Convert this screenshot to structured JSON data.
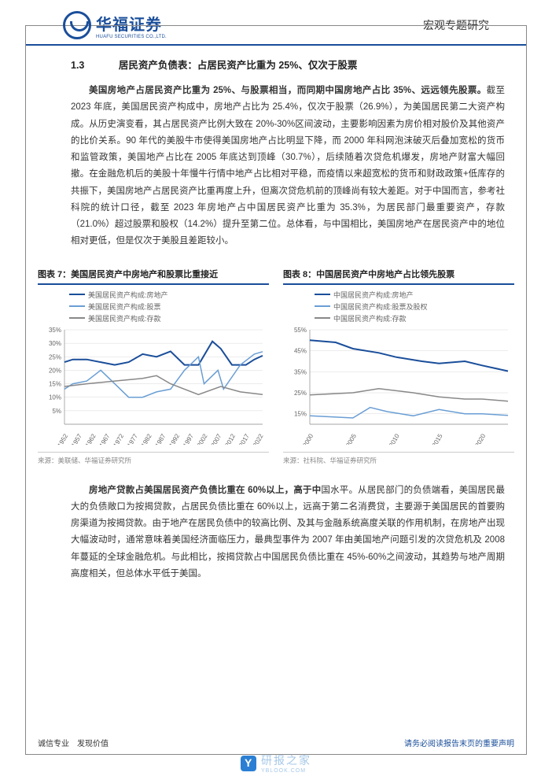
{
  "header": {
    "logo_cn": "华福证券",
    "logo_en": "HUAFU SECURITIES CO.,LTD.",
    "right_text": "宏观专题研究"
  },
  "section": {
    "number": "1.3",
    "title": "居民资产负债表：占居民资产比重为 25%、仅次于股票"
  },
  "para1": "美国房地产占居民资产比重为 25%、与股票相当，而同期中国房地产占比 35%、远远领先股票。截至 2023 年底，美国居民资产构成中，房地产占比为 25.4%，仅次于股票（26.9%），为美国居民第二大资产构成。从历史演变看，其占居民资产比例大致在 20%-30%区间波动，主要影响因素为房价相对股价及其他资产的比价关系。90 年代的美股牛市使得美国房地产占比明显下降，而 2000 年科网泡沫破灭后叠加宽松的货币和监管政策，美国地产占比在 2005 年底达到顶峰（30.7%），后续随着次贷危机爆发，房地产财富大幅回撤。在金融危机后的美股十年慢牛行情中地产占比相对平稳，而疫情以来超宽松的货币和财政政策+低库存的共振下，美国房地产占居民资产比重再度上升，但离次贷危机前的顶峰尚有较大差距。对于中国而言，参考社科院的统计口径，截至 2023 年房地产占中国居民资产比重为 35.3%，为居民部门最重要资产，存款（21.0%）超过股票和股权（14.2%）提升至第二位。总体看，与中国相比，美国房地产在居民资产中的地位相对更低，但是仅次于美股且差距较小。",
  "para1_bold_end": 46,
  "chart7": {
    "title": "图表 7：美国居民资产中房地产和股票比重接近",
    "type": "line",
    "legend": [
      {
        "label": "美国居民资产构成:房地产",
        "color": "#1a4e9a",
        "width": 2
      },
      {
        "label": "美国居民资产构成:股票",
        "color": "#6a9ed4",
        "width": 1.5
      },
      {
        "label": "美国居民资产构成:存款",
        "color": "#888888",
        "width": 1.5
      }
    ],
    "ylim": [
      0,
      35
    ],
    "ytick_step": 5,
    "ytick_labels": [
      "5%",
      "10%",
      "15%",
      "20%",
      "25%",
      "30%",
      "35%"
    ],
    "x_labels": [
      "1952",
      "1957",
      "1962",
      "1967",
      "1972",
      "1977",
      "1982",
      "1987",
      "1992",
      "1997",
      "2002",
      "2007",
      "2012",
      "2017",
      "2022"
    ],
    "x_range": [
      1952,
      2023
    ],
    "series": {
      "real_estate": [
        [
          1952,
          23
        ],
        [
          1955,
          24
        ],
        [
          1960,
          24
        ],
        [
          1965,
          23
        ],
        [
          1970,
          22
        ],
        [
          1975,
          23
        ],
        [
          1980,
          26
        ],
        [
          1985,
          25
        ],
        [
          1990,
          27
        ],
        [
          1995,
          22
        ],
        [
          2000,
          22
        ],
        [
          2005,
          30.7
        ],
        [
          2008,
          28
        ],
        [
          2012,
          22
        ],
        [
          2017,
          22
        ],
        [
          2020,
          24
        ],
        [
          2023,
          25.4
        ]
      ],
      "stocks": [
        [
          1952,
          13
        ],
        [
          1955,
          15
        ],
        [
          1960,
          16
        ],
        [
          1965,
          20
        ],
        [
          1970,
          15
        ],
        [
          1975,
          10
        ],
        [
          1980,
          10
        ],
        [
          1985,
          12
        ],
        [
          1990,
          13
        ],
        [
          1995,
          20
        ],
        [
          2000,
          25
        ],
        [
          2002,
          15
        ],
        [
          2007,
          20
        ],
        [
          2009,
          13
        ],
        [
          2015,
          22
        ],
        [
          2020,
          26
        ],
        [
          2023,
          26.9
        ]
      ],
      "deposits": [
        [
          1952,
          14
        ],
        [
          1960,
          15
        ],
        [
          1970,
          16
        ],
        [
          1980,
          17
        ],
        [
          1985,
          18
        ],
        [
          1990,
          15
        ],
        [
          2000,
          11
        ],
        [
          2008,
          14
        ],
        [
          2015,
          12
        ],
        [
          2023,
          11
        ]
      ]
    },
    "background_color": "#ffffff",
    "grid_color": "#d8d8d8",
    "axis_color": "#888888",
    "label_fontsize": 8,
    "source": "来源：美联储、华福证券研究所"
  },
  "chart8": {
    "title": "图表 8：中国居民资产中房地产占比领先股票",
    "type": "line",
    "legend": [
      {
        "label": "中国居民资产构成:房地产",
        "color": "#1a4e9a",
        "width": 2
      },
      {
        "label": "中国居民资产构成:股票及股权",
        "color": "#6a9ed4",
        "width": 1.5
      },
      {
        "label": "中国居民资产构成:存款",
        "color": "#888888",
        "width": 1.5
      }
    ],
    "ylim": [
      10,
      55
    ],
    "ytick_step": 5,
    "ytick_labels": [
      "15%",
      "25%",
      "35%",
      "45%",
      "55%"
    ],
    "x_labels": [
      "2000",
      "2005",
      "2010",
      "2015",
      "2020"
    ],
    "x_range": [
      2000,
      2023
    ],
    "series": {
      "real_estate": [
        [
          2000,
          50
        ],
        [
          2003,
          49
        ],
        [
          2005,
          46
        ],
        [
          2008,
          44
        ],
        [
          2010,
          42
        ],
        [
          2013,
          40
        ],
        [
          2015,
          39
        ],
        [
          2018,
          40
        ],
        [
          2020,
          38
        ],
        [
          2023,
          35.3
        ]
      ],
      "stocks": [
        [
          2000,
          14
        ],
        [
          2005,
          13
        ],
        [
          2007,
          18
        ],
        [
          2009,
          16
        ],
        [
          2012,
          14
        ],
        [
          2015,
          17
        ],
        [
          2018,
          15
        ],
        [
          2020,
          15
        ],
        [
          2023,
          14.2
        ]
      ],
      "deposits": [
        [
          2000,
          24
        ],
        [
          2005,
          25
        ],
        [
          2008,
          27
        ],
        [
          2012,
          25
        ],
        [
          2015,
          23
        ],
        [
          2018,
          22
        ],
        [
          2020,
          22
        ],
        [
          2023,
          21
        ]
      ]
    },
    "background_color": "#ffffff",
    "grid_color": "#d8d8d8",
    "axis_color": "#888888",
    "label_fontsize": 8,
    "source": "来源：社科院、华福证券研究所"
  },
  "para2": "房地产贷款占美国居民资产负债比重在 60%以上，高于中国水平。从居民部门的负债端看，美国居民最大的负债敞口为按揭贷款，占居民负债比重在 60%以上，远高于第二名消费贷，主要源于美国居民的首要购房渠道为按揭贷款。由于地产在居民负债中的较高比例、及其与金融系统高度关联的作用机制，在房地产出现大幅波动时，通常意味着美国经济面临压力，最典型事件为 2007 年由美国地产问题引发的次贷危机及 2008 年蔓延的全球金融危机。与此相比，按揭贷款占中国居民负债比重在 45%-60%之间波动，其趋势与地产周期高度相关，但总体水平低于美国。",
  "para2_bold_end": 27,
  "footer": {
    "left": "诚信专业　发现价值",
    "right": "请务必阅读报告末页的重要声明"
  },
  "watermark": {
    "text": "研报之家",
    "sub": "YBLOOK.COM"
  }
}
